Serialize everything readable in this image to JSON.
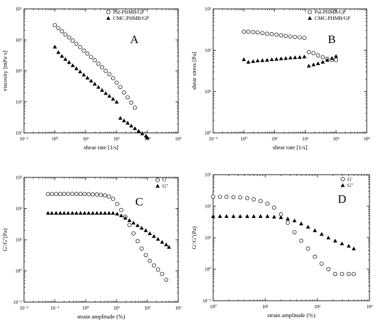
{
  "chart_data": [
    {
      "type": "scatter",
      "panel_label": "A",
      "xlabel": "shear rate [1/s]",
      "ylabel": "viscosity [mPa·s]",
      "xscale": "log",
      "yscale": "log",
      "xlim": [
        0.1,
        10000
      ],
      "ylim": [
        100,
        1000000
      ],
      "xtick_labels": [
        "10⁻¹",
        "10⁰",
        "10¹",
        "10²",
        "10³",
        "10⁴"
      ],
      "ytick_labels": [
        "10²",
        "10³",
        "10⁴",
        "10⁵",
        "10⁶"
      ],
      "legend_position": "top-right",
      "series": [
        {
          "name": "Pul-PHMB/GP",
          "marker": "circle-open",
          "x": [
            1.0,
            1.3,
            1.7,
            2.2,
            2.9,
            3.8,
            5.0,
            6.6,
            8.7,
            11.4,
            15.0,
            19.7,
            25.9,
            34.0,
            44.7,
            58.7,
            77.1,
            101,
            133,
            175,
            230,
            300,
            395
          ],
          "y": [
            300000,
            240000,
            190000,
            150000,
            120000,
            95000,
            75000,
            58000,
            45000,
            36000,
            28000,
            22000,
            17000,
            13000,
            10000,
            7800,
            5800,
            4200,
            3000,
            2000,
            1400,
            950,
            650
          ]
        },
        {
          "name": "CMC-PHMB/GP",
          "marker": "triangle-filled",
          "x": [
            1.0,
            1.3,
            1.7,
            2.2,
            2.9,
            3.8,
            5.0,
            6.6,
            8.7,
            11.4,
            15.0,
            19.7,
            25.9,
            34.0,
            44.7,
            58.7,
            77.1,
            101,
            133,
            175,
            230,
            300,
            395,
            520,
            680,
            900,
            1000
          ],
          "y": [
            60000,
            40000,
            30000,
            24000,
            19000,
            15000,
            12000,
            9500,
            7500,
            6000,
            4800,
            3800,
            3000,
            2400,
            1900,
            1550,
            1250,
            1000,
            300,
            250,
            210,
            170,
            140,
            115,
            95,
            80,
            70
          ]
        }
      ]
    },
    {
      "type": "scatter",
      "panel_label": "B",
      "xlabel": "shear rate [1/s]",
      "ylabel": "shear stress [Pa]",
      "xscale": "log",
      "yscale": "log",
      "xlim": [
        0.1,
        10000
      ],
      "ylim": [
        1,
        1000
      ],
      "xtick_labels": [
        "10⁻¹",
        "10⁰",
        "10¹",
        "10²",
        "10³",
        "10⁴"
      ],
      "ytick_labels": [
        "10⁰",
        "10¹",
        "10²",
        "10³"
      ],
      "legend_position": "top-right",
      "series": [
        {
          "name": "Pul-PHMB/GP",
          "marker": "circle-open",
          "x": [
            1.0,
            1.4,
            2.0,
            2.8,
            4.0,
            5.7,
            8.1,
            11.5,
            16.3,
            23.1,
            32.7,
            46.4,
            65.8,
            93.3,
            130,
            185,
            260,
            370,
            520,
            740,
            1000
          ],
          "y": [
            280,
            280,
            275,
            270,
            260,
            250,
            245,
            238,
            230,
            222,
            215,
            210,
            205,
            200,
            90,
            85,
            75,
            68,
            62,
            58,
            58
          ]
        },
        {
          "name": "CMC-PHMB/GP",
          "marker": "triangle-filled",
          "x": [
            1.0,
            1.4,
            2.0,
            2.8,
            4.0,
            5.7,
            8.1,
            11.5,
            16.3,
            23.1,
            32.7,
            46.4,
            65.8,
            93.3,
            130,
            185,
            260,
            370,
            520,
            740,
            1000
          ],
          "y": [
            60,
            52,
            54,
            56,
            57,
            58,
            60,
            61,
            63,
            64,
            66,
            67,
            68,
            70,
            42,
            45,
            48,
            52,
            58,
            64,
            72
          ]
        }
      ]
    },
    {
      "type": "scatter",
      "panel_label": "C",
      "xlabel": "strain amplitude (%)",
      "ylabel": "G'/G''(Pa)",
      "xscale": "log",
      "yscale": "log",
      "xlim": [
        0.01,
        1000
      ],
      "ylim": [
        0.1,
        1000
      ],
      "xtick_labels": [
        "10⁻²",
        "10⁻¹",
        "10⁰",
        "10¹",
        "10²",
        "10³"
      ],
      "ytick_labels": [
        "10⁻¹",
        "10⁰",
        "10¹",
        "10²",
        "10³"
      ],
      "legend_position": "top-right",
      "series": [
        {
          "name": "G'",
          "marker": "circle-open",
          "x": [
            0.06,
            0.08,
            0.11,
            0.15,
            0.2,
            0.27,
            0.37,
            0.5,
            0.68,
            0.92,
            1.25,
            1.7,
            2.3,
            3.1,
            4.2,
            5.7,
            7.7,
            10.5,
            14.2,
            19.3,
            26.2,
            35.5,
            48.2,
            65.4,
            88.7,
            120,
            163,
            221,
            300,
            407
          ],
          "y": [
            290,
            292,
            294,
            295,
            296,
            296,
            296,
            295,
            294,
            292,
            290,
            287,
            283,
            276,
            265,
            245,
            205,
            140,
            90,
            55,
            30,
            16,
            9,
            5.2,
            3.2,
            2.1,
            1.5,
            1.1,
            0.8,
            0.52
          ]
        },
        {
          "name": "G''",
          "marker": "triangle-filled",
          "x": [
            0.06,
            0.08,
            0.11,
            0.15,
            0.2,
            0.27,
            0.37,
            0.5,
            0.68,
            0.92,
            1.25,
            1.7,
            2.3,
            3.1,
            4.2,
            5.7,
            7.7,
            10.5,
            14.2,
            19.3,
            26.2,
            35.5,
            48.2,
            65.4,
            88.7,
            120,
            163,
            221,
            300,
            407,
            500
          ],
          "y": [
            72,
            72,
            72,
            72,
            72,
            72,
            72,
            72,
            72,
            72,
            72,
            72,
            72,
            72,
            72,
            72,
            72,
            68,
            60,
            50,
            42,
            35,
            29,
            24,
            20,
            16,
            13,
            10.5,
            8.5,
            7,
            5.8
          ]
        }
      ]
    },
    {
      "type": "scatter",
      "panel_label": "D",
      "xlabel": "strain amplitude (%)",
      "ylabel": "G'/G''(Pa)",
      "xscale": "log",
      "yscale": "log",
      "xlim": [
        1,
        1000
      ],
      "ylim": [
        0.1,
        1000
      ],
      "xtick_labels": [
        "10⁰",
        "10¹",
        "10²",
        "10³"
      ],
      "ytick_labels": [
        "10⁻¹",
        "10⁰",
        "10¹",
        "10²",
        "10³"
      ],
      "legend_position": "top-right",
      "series": [
        {
          "name": "G'",
          "marker": "circle-open",
          "x": [
            1.0,
            1.35,
            1.8,
            2.45,
            3.3,
            4.5,
            6.0,
            8.1,
            11.0,
            14.8,
            20,
            27,
            36.4,
            49,
            66.3,
            89.6,
            121,
            163,
            220,
            297,
            400,
            500
          ],
          "y": [
            200,
            200,
            198,
            195,
            190,
            180,
            165,
            145,
            120,
            90,
            55,
            30,
            15,
            8,
            4.5,
            2.5,
            1.5,
            1.0,
            0.7,
            0.7,
            0.7,
            0.7
          ]
        },
        {
          "name": "G''",
          "marker": "triangle-filled",
          "x": [
            1.0,
            1.35,
            1.8,
            2.45,
            3.3,
            4.5,
            6.0,
            8.1,
            11.0,
            14.8,
            20,
            27,
            36.4,
            49,
            66.3,
            89.6,
            121,
            163,
            220,
            297,
            400,
            500
          ],
          "y": [
            48,
            48,
            48,
            48,
            48,
            48,
            48,
            48,
            48,
            46,
            44,
            40,
            35,
            28,
            22,
            17,
            13,
            10,
            8,
            6.5,
            5.5,
            4.5
          ]
        }
      ]
    }
  ]
}
